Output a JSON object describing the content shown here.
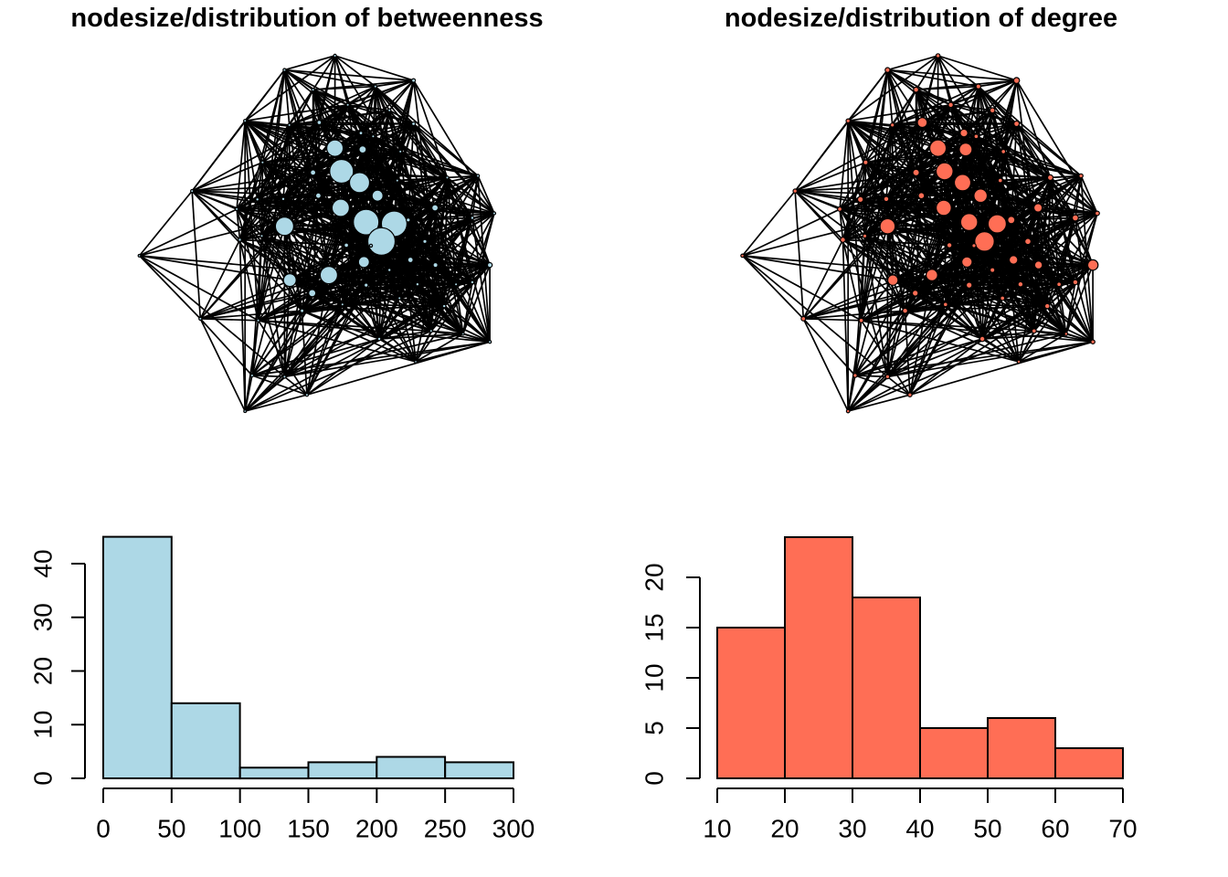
{
  "titles": {
    "left": "nodesize/distribution of betweenness",
    "right": "nodesize/distribution of degree"
  },
  "colors": {
    "background": "#FFFFFF",
    "betweenness_fill": "#ADD8E6",
    "degree_fill": "#FF6E55",
    "edge": "#000000",
    "axis": "#000000"
  },
  "network_layout": {
    "x": [
      49.3,
      37.8,
      67.2,
      58.5,
      44.3,
      52.2,
      61.7,
      28.8,
      45.7,
      38.9,
      67.2,
      55.2,
      49.3,
      55.6,
      32.8,
      16.7,
      44.3,
      50.8,
      64.2,
      54.9,
      74.9,
      81.9,
      59.0,
      45.5,
      37.5,
      31.6,
      26.9,
      50.6,
      72.1,
      80.6,
      85.6,
      37.8,
      56.4,
      62.8,
      66.0,
      59.9,
      69.8,
      27.6,
      32.6,
      4.7,
      51.9,
      55.9,
      66.5,
      72.2,
      84.6,
      61.7,
      39.0,
      47.9,
      44.1,
      56.4,
      68.1,
      76.9,
      80.6,
      74.2,
      18.6,
      31.8,
      41.8,
      71.2,
      59.4,
      78.5,
      84.6,
      67.7,
      30.4,
      37.8,
      42.9,
      28.8,
      58.0,
      63.5,
      57.5,
      51.0,
      64.0
    ],
    "y": [
      1.3,
      4.7,
      7.2,
      8.6,
      9.4,
      13.0,
      14.3,
      16.8,
      17.2,
      17.8,
      17.5,
      19.7,
      23.3,
      23.6,
      26.7,
      33.5,
      29.1,
      28.8,
      24.1,
      31.5,
      30.3,
      29.9,
      34.6,
      34.6,
      35.4,
      35.5,
      37.8,
      37.5,
      37.5,
      39.9,
      38.8,
      41.9,
      40.9,
      41.3,
      40.4,
      45.5,
      45.5,
      45.1,
      44.2,
      48.9,
      46.4,
      50.4,
      49.9,
      51.1,
      51.1,
      52.3,
      54.7,
      53.5,
      57.8,
      55.9,
      55.7,
      55.7,
      55.2,
      60.9,
      63.9,
      64.3,
      62.0,
      66.8,
      68.7,
      67.5,
      69.4,
      74.1,
      77.4,
      77.7,
      82.0,
      85.9,
      20.5,
      31.0,
      46.5,
      60.5,
      59.0
    ],
    "edge_rule": {
      "bands": [
        {
          "max": 14,
          "p": 0.96
        },
        {
          "max": 24,
          "p": 0.72
        },
        {
          "max": 34,
          "p": 0.45
        },
        {
          "max": 48,
          "p": 0.2
        },
        {
          "max": 200,
          "p": 0.04
        }
      ]
    }
  },
  "chart_data": [
    {
      "type": "network",
      "title": "nodesize/distribution of betweenness",
      "sized_by": "betweenness",
      "node_fill": "#ADD8E6",
      "edge_color": "#000000",
      "node_radius_px": [
        1.6,
        1.6,
        2.0,
        1.6,
        1.6,
        1.6,
        1.6,
        1.6,
        2.4,
        1.6,
        2.0,
        2.0,
        9.0,
        4.0,
        1.6,
        1.6,
        3.0,
        13.0,
        1.6,
        11.0,
        1.6,
        1.6,
        6.0,
        3.0,
        1.8,
        1.8,
        1.6,
        9.5,
        3.5,
        1.8,
        1.6,
        10.0,
        14.0,
        14.0,
        2.2,
        15.0,
        2.2,
        1.8,
        1.6,
        1.4,
        2.4,
        6.0,
        3.0,
        2.6,
        2.6,
        1.8,
        7.0,
        9.5,
        4.0,
        2.2,
        1.8,
        1.6,
        1.8,
        1.8,
        1.6,
        1.6,
        2.0,
        1.6,
        1.8,
        1.4,
        1.6,
        1.4,
        1.6,
        1.6,
        1.6,
        1.4,
        1.6,
        1.6,
        1.6,
        1.6,
        1.6
      ]
    },
    {
      "type": "network",
      "title": "nodesize/distribution of degree",
      "sized_by": "degree",
      "node_fill": "#FF6E55",
      "edge_color": "#000000",
      "node_radius_px": [
        2.2,
        2.6,
        3.2,
        2.6,
        2.8,
        2.8,
        2.8,
        2.2,
        5.4,
        2.2,
        3.0,
        4.2,
        9.0,
        7.0,
        2.6,
        2.2,
        3.6,
        9.3,
        2.4,
        9.0,
        3.0,
        2.2,
        7.3,
        3.4,
        2.8,
        3.2,
        2.4,
        8.3,
        4.6,
        3.4,
        2.4,
        8.3,
        9.3,
        10.0,
        4.0,
        10.7,
        3.4,
        2.8,
        2.2,
        1.8,
        2.8,
        5.7,
        4.7,
        4.3,
        5.7,
        2.6,
        5.7,
        6.3,
        3.2,
        3.2,
        2.8,
        2.4,
        2.8,
        2.8,
        2.4,
        2.4,
        2.8,
        2.4,
        2.8,
        1.8,
        2.2,
        1.8,
        2.2,
        2.2,
        2.2,
        1.8,
        2.4,
        2.4,
        2.2,
        2.4,
        2.4
      ]
    },
    {
      "type": "bar",
      "series": "betweenness histogram",
      "bins": [
        0,
        50,
        100,
        150,
        200,
        250,
        300
      ],
      "counts": [
        45,
        14,
        2,
        3,
        4,
        3
      ],
      "x_ticks": [
        0,
        50,
        100,
        150,
        200,
        250,
        300
      ],
      "y_ticks": [
        0,
        10,
        20,
        30,
        40
      ],
      "xlim": [
        0,
        300
      ],
      "ylim": [
        0,
        45
      ],
      "bar_fill": "#ADD8E6"
    },
    {
      "type": "bar",
      "series": "degree histogram",
      "bins": [
        10,
        20,
        30,
        40,
        50,
        60,
        70
      ],
      "counts": [
        15,
        24,
        18,
        5,
        6,
        3
      ],
      "x_ticks": [
        10,
        20,
        30,
        40,
        50,
        60,
        70
      ],
      "y_ticks": [
        0,
        5,
        10,
        15,
        20
      ],
      "xlim": [
        10,
        70
      ],
      "ylim": [
        0,
        24
      ],
      "bar_fill": "#FF6E55"
    }
  ]
}
